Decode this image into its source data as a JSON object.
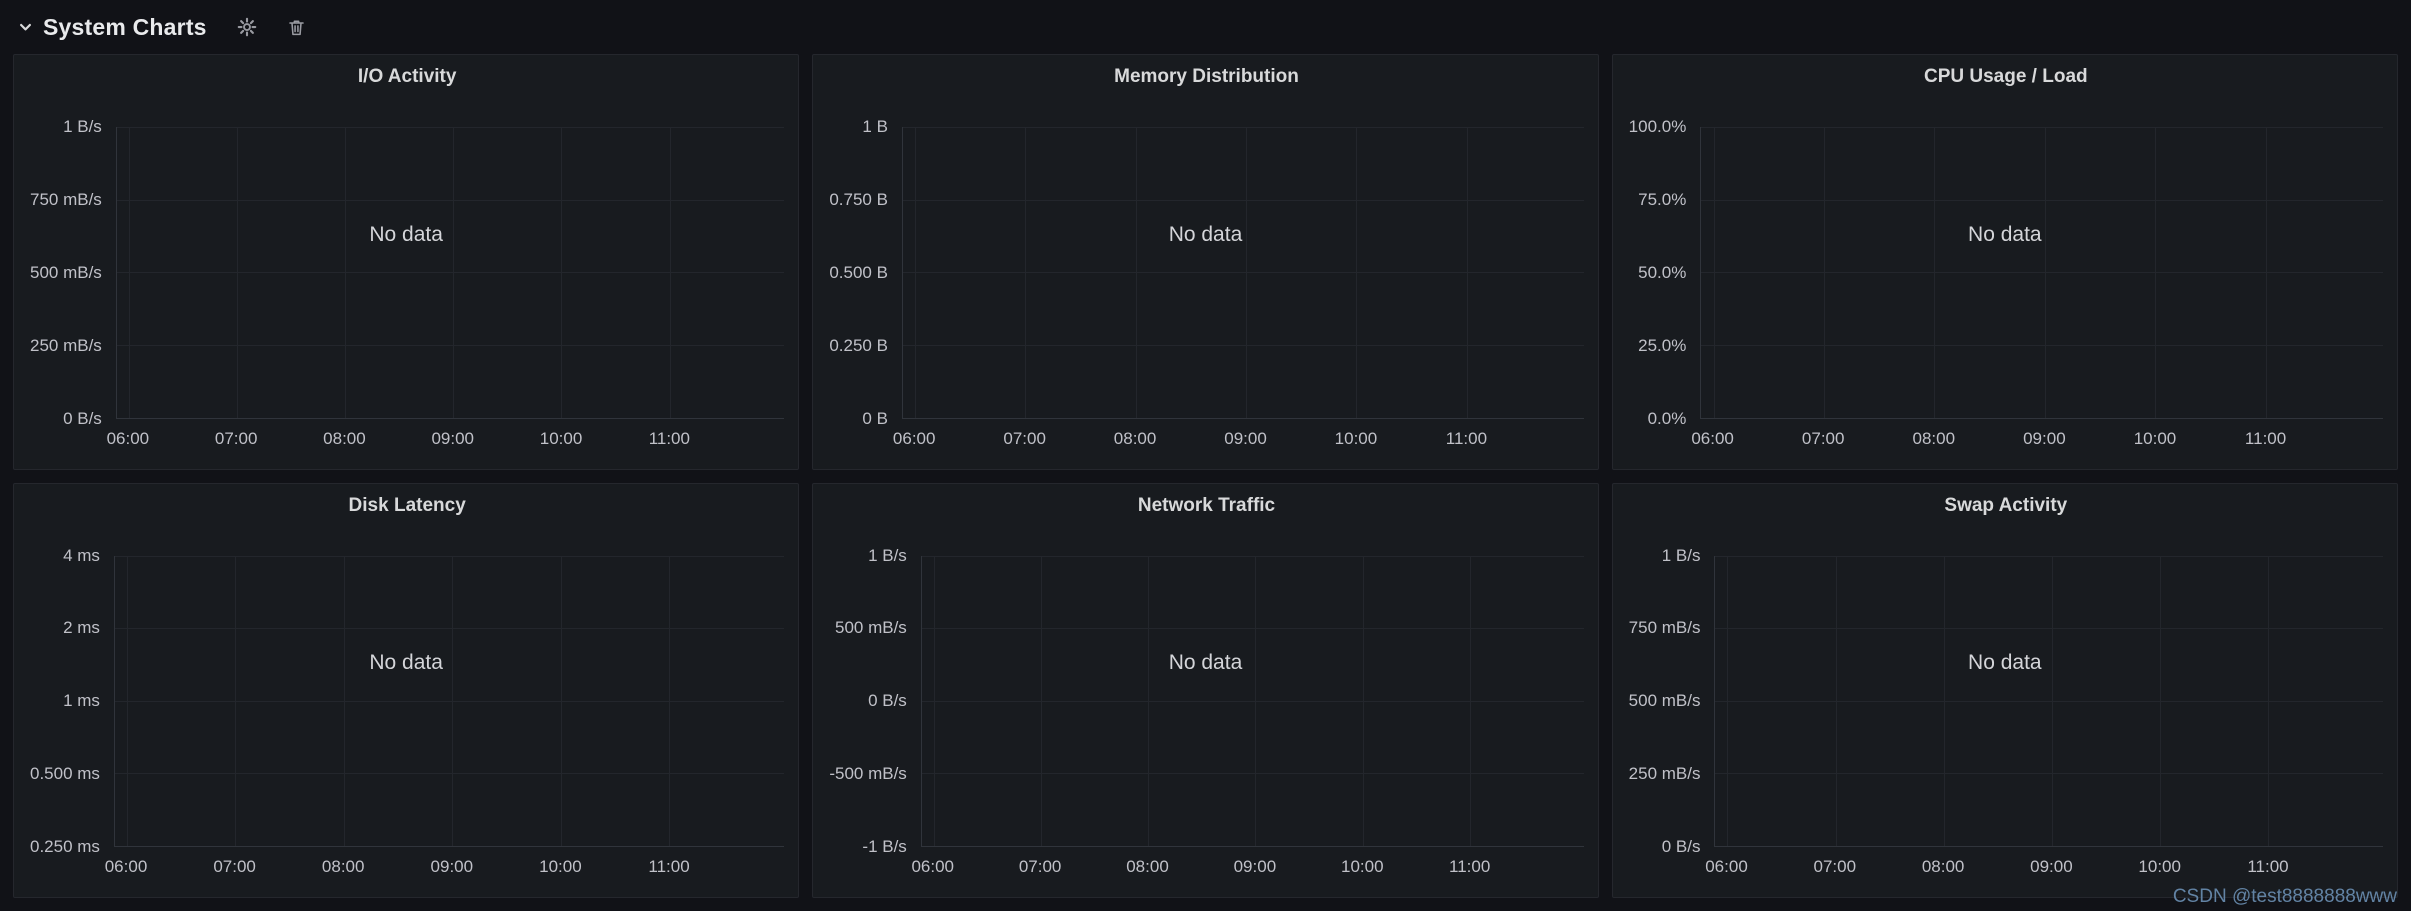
{
  "header": {
    "title": "System Charts",
    "collapse_icon": "chevron-down",
    "actions": [
      {
        "icon": "gear-icon",
        "label": "settings"
      },
      {
        "icon": "trash-icon",
        "label": "delete"
      }
    ]
  },
  "watermark": {
    "text": "CSDN @test8888888www",
    "color": "#6283a4"
  },
  "colors": {
    "page_bg": "#111217",
    "panel_bg": "#181b1f",
    "panel_border": "#25272d",
    "grid_line": "#23262c",
    "axis_line": "#30343b",
    "title_text": "#d8d9da",
    "axis_text": "#c0c1c8"
  },
  "x_ticks": [
    "06:00",
    "07:00",
    "08:00",
    "09:00",
    "10:00",
    "11:00"
  ],
  "panels": [
    {
      "title": "I/O Activity",
      "no_data_label": "No data",
      "y_ticks": [
        "1 B/s",
        "750 mB/s",
        "500 mB/s",
        "250 mB/s",
        "0 B/s"
      ]
    },
    {
      "title": "Memory Distribution",
      "no_data_label": "No data",
      "y_ticks": [
        "1 B",
        "0.750 B",
        "0.500 B",
        "0.250 B",
        "0 B"
      ]
    },
    {
      "title": "CPU Usage / Load",
      "no_data_label": "No data",
      "y_ticks": [
        "100.0%",
        "75.0%",
        "50.0%",
        "25.0%",
        "0.0%"
      ]
    },
    {
      "title": "Disk Latency",
      "no_data_label": "No data",
      "y_ticks": [
        "4 ms",
        "2 ms",
        "1 ms",
        "0.500 ms",
        "0.250 ms"
      ]
    },
    {
      "title": "Network Traffic",
      "no_data_label": "No data",
      "y_ticks": [
        "1 B/s",
        "500 mB/s",
        "0 B/s",
        "-500 mB/s",
        "-1 B/s"
      ]
    },
    {
      "title": "Swap Activity",
      "no_data_label": "No data",
      "y_ticks": [
        "1 B/s",
        "750 mB/s",
        "500 mB/s",
        "250 mB/s",
        "0 B/s"
      ]
    }
  ],
  "chart_data": [
    {
      "type": "line",
      "title": "I/O Activity",
      "x": [
        "06:00",
        "07:00",
        "08:00",
        "09:00",
        "10:00",
        "11:00"
      ],
      "y_tick_labels": [
        "1 B/s",
        "750 mB/s",
        "500 mB/s",
        "250 mB/s",
        "0 B/s"
      ],
      "series": [],
      "annotations": [
        "No data"
      ],
      "grid": true,
      "legend": false
    },
    {
      "type": "line",
      "title": "Memory Distribution",
      "x": [
        "06:00",
        "07:00",
        "08:00",
        "09:00",
        "10:00",
        "11:00"
      ],
      "y_tick_labels": [
        "1 B",
        "0.750 B",
        "0.500 B",
        "0.250 B",
        "0 B"
      ],
      "series": [],
      "annotations": [
        "No data"
      ],
      "grid": true,
      "legend": false
    },
    {
      "type": "line",
      "title": "CPU Usage / Load",
      "x": [
        "06:00",
        "07:00",
        "08:00",
        "09:00",
        "10:00",
        "11:00"
      ],
      "y_tick_labels": [
        "100.0%",
        "75.0%",
        "50.0%",
        "25.0%",
        "0.0%"
      ],
      "series": [],
      "annotations": [
        "No data"
      ],
      "grid": true,
      "legend": false
    },
    {
      "type": "line",
      "title": "Disk Latency",
      "x": [
        "06:00",
        "07:00",
        "08:00",
        "09:00",
        "10:00",
        "11:00"
      ],
      "y_tick_labels": [
        "4 ms",
        "2 ms",
        "1 ms",
        "0.500 ms",
        "0.250 ms"
      ],
      "series": [],
      "annotations": [
        "No data"
      ],
      "grid": true,
      "legend": false
    },
    {
      "type": "line",
      "title": "Network Traffic",
      "x": [
        "06:00",
        "07:00",
        "08:00",
        "09:00",
        "10:00",
        "11:00"
      ],
      "y_tick_labels": [
        "1 B/s",
        "500 mB/s",
        "0 B/s",
        "-500 mB/s",
        "-1 B/s"
      ],
      "series": [],
      "annotations": [
        "No data"
      ],
      "grid": true,
      "legend": false
    },
    {
      "type": "line",
      "title": "Swap Activity",
      "x": [
        "06:00",
        "07:00",
        "08:00",
        "09:00",
        "10:00",
        "11:00"
      ],
      "y_tick_labels": [
        "1 B/s",
        "750 mB/s",
        "500 mB/s",
        "250 mB/s",
        "0 B/s"
      ],
      "series": [],
      "annotations": [
        "No data"
      ],
      "grid": true,
      "legend": false
    }
  ]
}
